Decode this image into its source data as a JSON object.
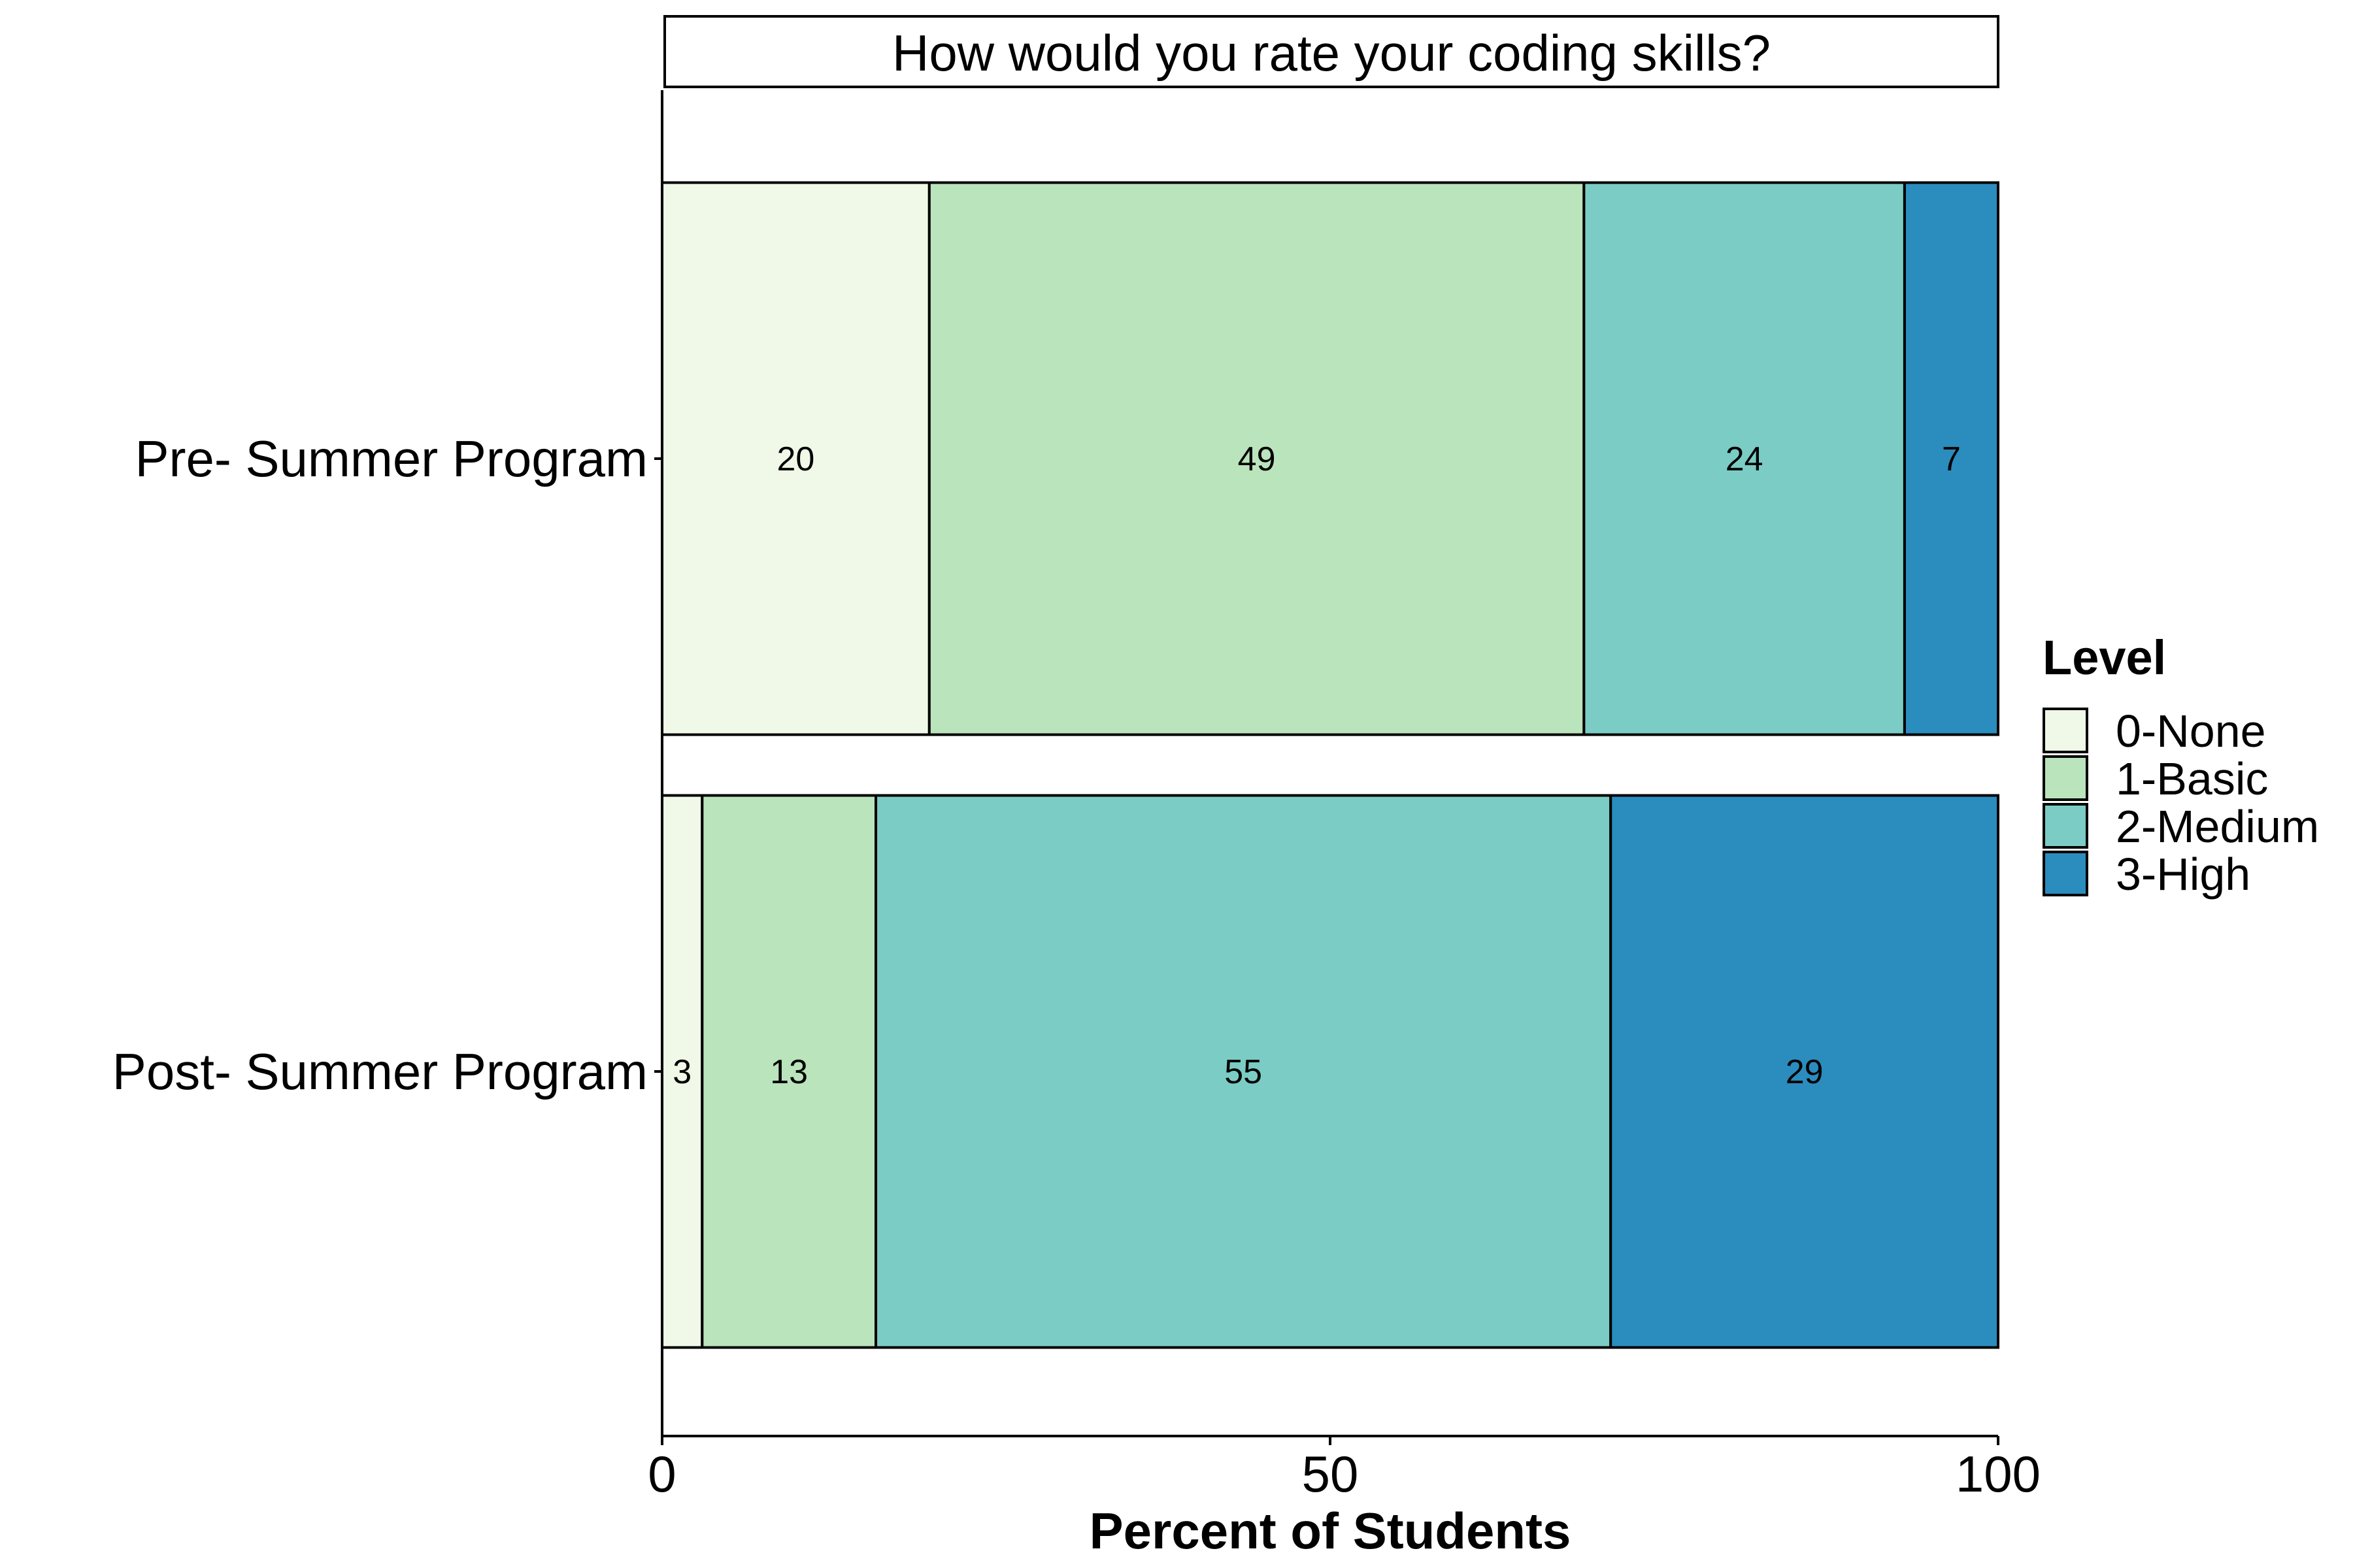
{
  "chart_data": {
    "type": "bar",
    "orientation": "horizontal",
    "stacked": true,
    "title": "How would you rate your coding skills?",
    "xlabel": "Percent of Students",
    "ylabel": "",
    "xlim": [
      0,
      100
    ],
    "x_ticks": [
      0,
      50,
      100
    ],
    "categories": [
      "Pre- Summer Program",
      "Post- Summer Program"
    ],
    "legend": {
      "title": "Level",
      "position": "right"
    },
    "series": [
      {
        "name": "0-None",
        "color": "#f0f9e8",
        "values": [
          20,
          3
        ]
      },
      {
        "name": "1-Basic",
        "color": "#bae4bc",
        "values": [
          49,
          13
        ]
      },
      {
        "name": "2-Medium",
        "color": "#7bccc4",
        "values": [
          24,
          55
        ]
      },
      {
        "name": "3-High",
        "color": "#2b8cbe",
        "values": [
          7,
          29
        ]
      }
    ]
  }
}
